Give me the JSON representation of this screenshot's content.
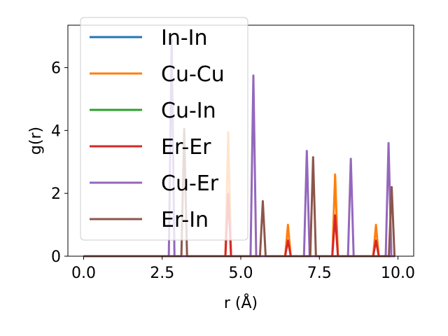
{
  "chart_data": {
    "type": "line",
    "xlabel": "r (Å)",
    "ylabel": "g(r)",
    "xlim": [
      -0.5,
      10.5
    ],
    "ylim": [
      0,
      7.35
    ],
    "xticks": [
      "0.0",
      "2.5",
      "5.0",
      "7.5",
      "10.0"
    ],
    "xtick_values": [
      0,
      2.5,
      5,
      7.5,
      10
    ],
    "yticks": [
      "0",
      "2",
      "4",
      "6"
    ],
    "ytick_values": [
      0,
      2,
      4,
      6
    ],
    "grid": false,
    "legend_position": "top-left",
    "series": [
      {
        "name": "In-In",
        "color": "#1f77b4",
        "peaks": []
      },
      {
        "name": "Cu-Cu",
        "color": "#ff7f0e",
        "peaks": [
          [
            4.6,
            3.95
          ],
          [
            6.5,
            1.0
          ],
          [
            8.0,
            2.6
          ],
          [
            9.3,
            1.0
          ]
        ]
      },
      {
        "name": "Cu-In",
        "color": "#2ca02c",
        "peaks": []
      },
      {
        "name": "Er-Er",
        "color": "#d62728",
        "peaks": [
          [
            4.6,
            1.98
          ],
          [
            6.5,
            0.5
          ],
          [
            8.0,
            1.3
          ],
          [
            9.3,
            0.5
          ]
        ]
      },
      {
        "name": "Cu-Er",
        "color": "#9467bd",
        "peaks": [
          [
            2.8,
            6.9
          ],
          [
            5.4,
            5.75
          ],
          [
            7.1,
            3.35
          ],
          [
            8.5,
            3.1
          ],
          [
            9.7,
            3.6
          ]
        ]
      },
      {
        "name": "Er-In",
        "color": "#8c564b",
        "peaks": [
          [
            3.2,
            4.05
          ],
          [
            5.7,
            1.75
          ],
          [
            7.3,
            3.15
          ],
          [
            9.8,
            2.2
          ]
        ]
      }
    ]
  }
}
